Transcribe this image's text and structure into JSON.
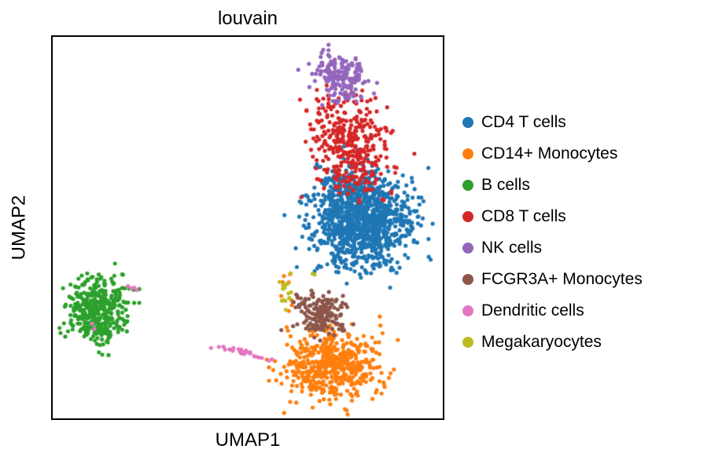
{
  "figure": {
    "background": "#ffffff"
  },
  "chart_data": {
    "type": "scatter",
    "title": "louvain",
    "xlabel": "UMAP1",
    "ylabel": "UMAP2",
    "ticks": "none",
    "frame": true,
    "grid": false,
    "legend_position": "right",
    "point_radius_px": 2.6,
    "seed": 42,
    "clusters": [
      {
        "label": "CD4 T cells",
        "color": "#1f77b4",
        "blobs": [
          {
            "cx": 0.79,
            "cy": 0.484,
            "sx": 0.066,
            "sy": 0.06,
            "n": 1050
          },
          {
            "cx": 0.765,
            "cy": 0.385,
            "sx": 0.048,
            "sy": 0.028,
            "n": 120
          }
        ]
      },
      {
        "label": "CD14+ Monocytes",
        "color": "#ff7f0e",
        "blobs": [
          {
            "cx": 0.714,
            "cy": 0.862,
            "sx": 0.058,
            "sy": 0.046,
            "n": 520
          },
          {
            "cx": 0.6,
            "cy": 0.68,
            "sx": 0.012,
            "sy": 0.03,
            "n": 8
          }
        ]
      },
      {
        "label": "B cells",
        "color": "#2ca02c",
        "blobs": [
          {
            "cx": 0.114,
            "cy": 0.716,
            "sx": 0.038,
            "sy": 0.041,
            "n": 400
          }
        ]
      },
      {
        "label": "CD8 T cells",
        "color": "#d62728",
        "blobs": [
          {
            "cx": 0.757,
            "cy": 0.276,
            "sx": 0.05,
            "sy": 0.052,
            "n": 280
          },
          {
            "cx": 0.78,
            "cy": 0.372,
            "sx": 0.062,
            "sy": 0.03,
            "n": 60
          },
          {
            "cx": 0.72,
            "cy": 0.175,
            "sx": 0.034,
            "sy": 0.02,
            "n": 28
          }
        ]
      },
      {
        "label": "NK cells",
        "color": "#9467bd",
        "blobs": [
          {
            "cx": 0.736,
            "cy": 0.098,
            "sx": 0.034,
            "sy": 0.029,
            "n": 170
          },
          {
            "cx": 0.75,
            "cy": 0.158,
            "sx": 0.028,
            "sy": 0.012,
            "n": 10
          }
        ]
      },
      {
        "label": "FCGR3A+ Monocytes",
        "color": "#8c564b",
        "blobs": [
          {
            "cx": 0.694,
            "cy": 0.731,
            "sx": 0.032,
            "sy": 0.024,
            "n": 155
          },
          {
            "cx": 0.636,
            "cy": 0.688,
            "sx": 0.014,
            "sy": 0.014,
            "n": 16
          }
        ]
      },
      {
        "label": "Dendritic cells",
        "color": "#e377c2",
        "blobs": [
          {
            "cx": 0.49,
            "cy": 0.828,
            "sx": 0.034,
            "sy": 0.006,
            "slope": 0.27,
            "n": 30
          },
          {
            "cx": 0.206,
            "cy": 0.659,
            "sx": 0.007,
            "sy": 0.006,
            "n": 4
          },
          {
            "cx": 0.108,
            "cy": 0.762,
            "sx": 0.004,
            "sy": 0.004,
            "n": 2
          }
        ]
      },
      {
        "label": "Megakaryocytes",
        "color": "#bcbd22",
        "blobs": [
          {
            "cx": 0.594,
            "cy": 0.657,
            "sx": 0.01,
            "sy": 0.024,
            "n": 14
          },
          {
            "cx": 0.664,
            "cy": 0.62,
            "sx": 0.004,
            "sy": 0.004,
            "n": 2
          }
        ]
      }
    ]
  }
}
